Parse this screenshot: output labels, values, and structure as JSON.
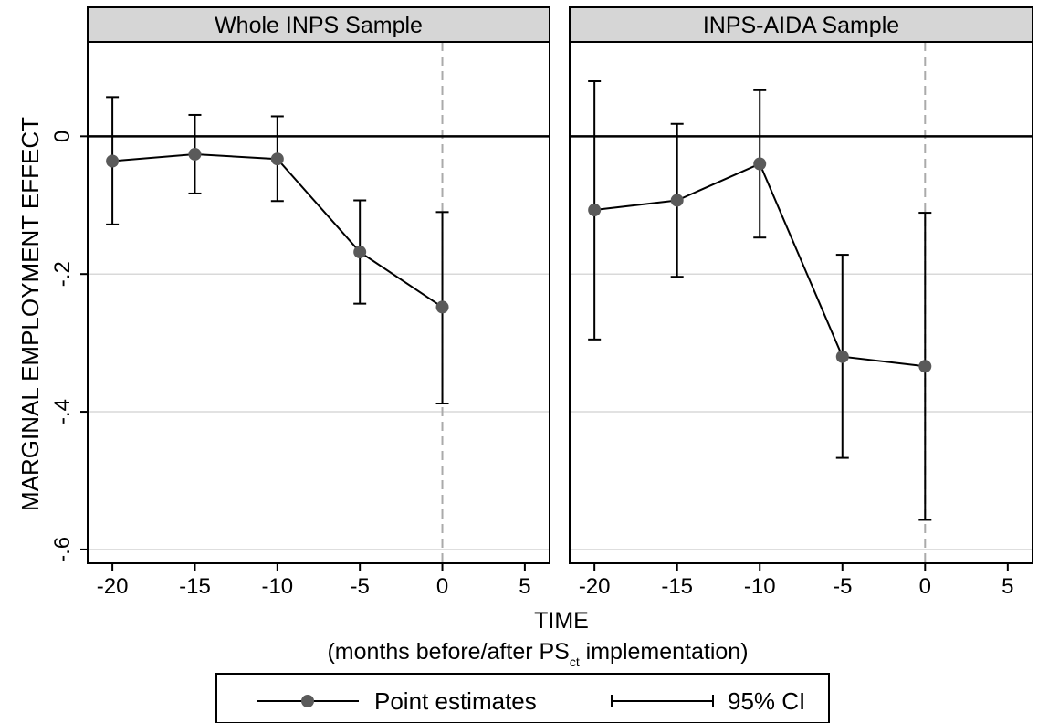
{
  "chart_data": {
    "type": "line",
    "ylabel": "MARGINAL EMPLOYMENT EFFECT",
    "xlabel": "TIME",
    "xlabel_sub": {
      "before": "(months before/after PS",
      "subscript": "ct",
      "after": " implementation)"
    },
    "xlim": [
      -21.5,
      6.5
    ],
    "ylim": [
      -0.62,
      0.137
    ],
    "x_ticks": [
      -20,
      -15,
      -10,
      -5,
      0,
      5
    ],
    "x_tick_labels": [
      "-20",
      "-15",
      "-10",
      "-5",
      "0",
      "5"
    ],
    "y_ticks": [
      0,
      -0.2,
      -0.4,
      -0.6
    ],
    "y_tick_labels": [
      "0",
      "-.2",
      "-.4",
      "-.6"
    ],
    "gridlines": [
      -0.2,
      -0.4,
      -0.6
    ],
    "reference_hline": 0,
    "reference_vline": 0,
    "panels": [
      {
        "title": "Whole INPS Sample",
        "x": [
          -20,
          -15,
          -10,
          -5,
          0
        ],
        "estimate": [
          -0.036,
          -0.026,
          -0.033,
          -0.168,
          -0.248
        ],
        "ci_low": [
          -0.128,
          -0.083,
          -0.094,
          -0.243,
          -0.388
        ],
        "ci_high": [
          0.057,
          0.031,
          0.029,
          -0.093,
          -0.11
        ]
      },
      {
        "title": "INPS-AIDA Sample",
        "x": [
          -20,
          -15,
          -10,
          -5,
          0
        ],
        "estimate": [
          -0.107,
          -0.093,
          -0.04,
          -0.32,
          -0.334
        ],
        "ci_low": [
          -0.295,
          -0.204,
          -0.147,
          -0.467,
          -0.557
        ],
        "ci_high": [
          0.08,
          0.018,
          0.067,
          -0.172,
          -0.111
        ]
      }
    ],
    "legend": {
      "placement": "bottom",
      "items": [
        {
          "label": "Point estimates",
          "marker": "line-with-dot"
        },
        {
          "label": "95% CI",
          "marker": "capped-range"
        }
      ]
    },
    "colors": {
      "line": "#000000",
      "marker": "#5a5a5a",
      "grid": "#d9d9d9",
      "vline": "#aaaaaa",
      "strip": "#d6d6d6"
    }
  }
}
